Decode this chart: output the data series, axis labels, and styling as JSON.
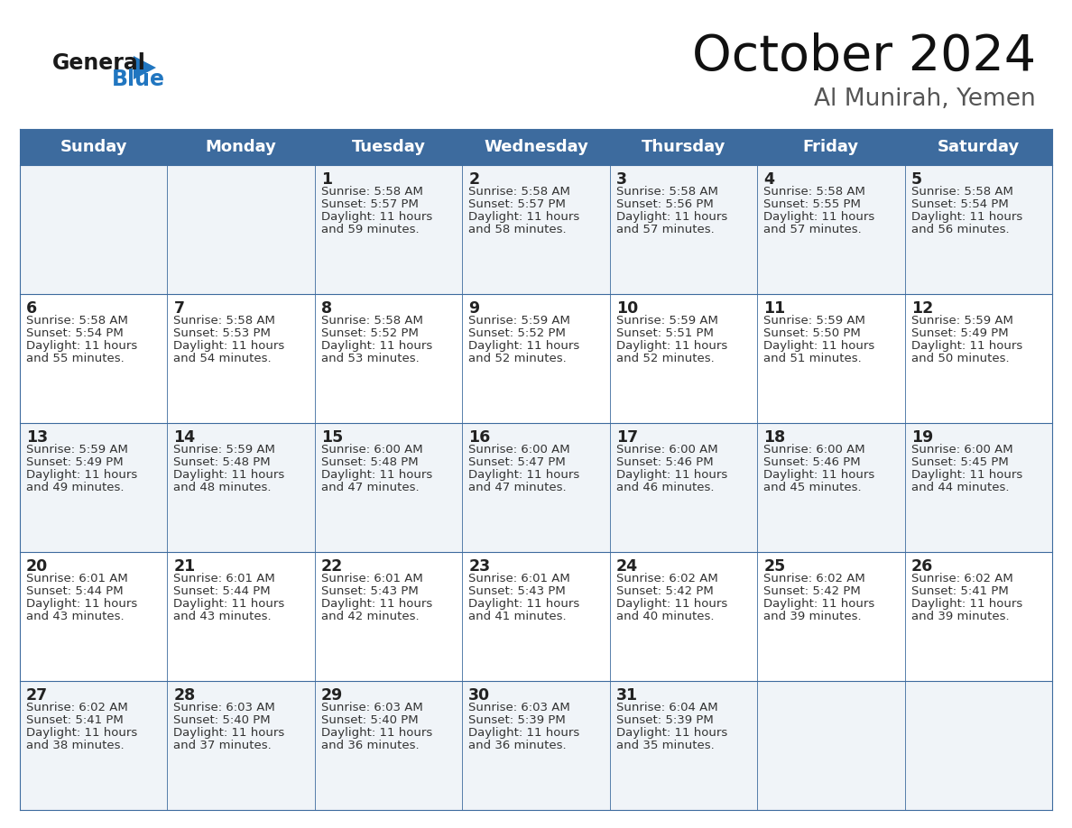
{
  "title": "October 2024",
  "subtitle": "Al Munirah, Yemen",
  "days_of_week": [
    "Sunday",
    "Monday",
    "Tuesday",
    "Wednesday",
    "Thursday",
    "Friday",
    "Saturday"
  ],
  "header_bg": "#3d6b9e",
  "header_text": "#ffffff",
  "cell_bg_odd": "#f0f4f8",
  "cell_bg_even": "#ffffff",
  "day_num_color": "#222222",
  "text_color": "#333333",
  "grid_color": "#3d6b9e",
  "logo_general_color": "#1a1a1a",
  "logo_blue_color": "#2176c0",
  "calendar_data": [
    [
      {
        "day": null,
        "sunrise": null,
        "sunset": null,
        "daylight": null
      },
      {
        "day": null,
        "sunrise": null,
        "sunset": null,
        "daylight": null
      },
      {
        "day": 1,
        "sunrise": "5:58 AM",
        "sunset": "5:57 PM",
        "daylight": "11 hours\nand 59 minutes."
      },
      {
        "day": 2,
        "sunrise": "5:58 AM",
        "sunset": "5:57 PM",
        "daylight": "11 hours\nand 58 minutes."
      },
      {
        "day": 3,
        "sunrise": "5:58 AM",
        "sunset": "5:56 PM",
        "daylight": "11 hours\nand 57 minutes."
      },
      {
        "day": 4,
        "sunrise": "5:58 AM",
        "sunset": "5:55 PM",
        "daylight": "11 hours\nand 57 minutes."
      },
      {
        "day": 5,
        "sunrise": "5:58 AM",
        "sunset": "5:54 PM",
        "daylight": "11 hours\nand 56 minutes."
      }
    ],
    [
      {
        "day": 6,
        "sunrise": "5:58 AM",
        "sunset": "5:54 PM",
        "daylight": "11 hours\nand 55 minutes."
      },
      {
        "day": 7,
        "sunrise": "5:58 AM",
        "sunset": "5:53 PM",
        "daylight": "11 hours\nand 54 minutes."
      },
      {
        "day": 8,
        "sunrise": "5:58 AM",
        "sunset": "5:52 PM",
        "daylight": "11 hours\nand 53 minutes."
      },
      {
        "day": 9,
        "sunrise": "5:59 AM",
        "sunset": "5:52 PM",
        "daylight": "11 hours\nand 52 minutes."
      },
      {
        "day": 10,
        "sunrise": "5:59 AM",
        "sunset": "5:51 PM",
        "daylight": "11 hours\nand 52 minutes."
      },
      {
        "day": 11,
        "sunrise": "5:59 AM",
        "sunset": "5:50 PM",
        "daylight": "11 hours\nand 51 minutes."
      },
      {
        "day": 12,
        "sunrise": "5:59 AM",
        "sunset": "5:49 PM",
        "daylight": "11 hours\nand 50 minutes."
      }
    ],
    [
      {
        "day": 13,
        "sunrise": "5:59 AM",
        "sunset": "5:49 PM",
        "daylight": "11 hours\nand 49 minutes."
      },
      {
        "day": 14,
        "sunrise": "5:59 AM",
        "sunset": "5:48 PM",
        "daylight": "11 hours\nand 48 minutes."
      },
      {
        "day": 15,
        "sunrise": "6:00 AM",
        "sunset": "5:48 PM",
        "daylight": "11 hours\nand 47 minutes."
      },
      {
        "day": 16,
        "sunrise": "6:00 AM",
        "sunset": "5:47 PM",
        "daylight": "11 hours\nand 47 minutes."
      },
      {
        "day": 17,
        "sunrise": "6:00 AM",
        "sunset": "5:46 PM",
        "daylight": "11 hours\nand 46 minutes."
      },
      {
        "day": 18,
        "sunrise": "6:00 AM",
        "sunset": "5:46 PM",
        "daylight": "11 hours\nand 45 minutes."
      },
      {
        "day": 19,
        "sunrise": "6:00 AM",
        "sunset": "5:45 PM",
        "daylight": "11 hours\nand 44 minutes."
      }
    ],
    [
      {
        "day": 20,
        "sunrise": "6:01 AM",
        "sunset": "5:44 PM",
        "daylight": "11 hours\nand 43 minutes."
      },
      {
        "day": 21,
        "sunrise": "6:01 AM",
        "sunset": "5:44 PM",
        "daylight": "11 hours\nand 43 minutes."
      },
      {
        "day": 22,
        "sunrise": "6:01 AM",
        "sunset": "5:43 PM",
        "daylight": "11 hours\nand 42 minutes."
      },
      {
        "day": 23,
        "sunrise": "6:01 AM",
        "sunset": "5:43 PM",
        "daylight": "11 hours\nand 41 minutes."
      },
      {
        "day": 24,
        "sunrise": "6:02 AM",
        "sunset": "5:42 PM",
        "daylight": "11 hours\nand 40 minutes."
      },
      {
        "day": 25,
        "sunrise": "6:02 AM",
        "sunset": "5:42 PM",
        "daylight": "11 hours\nand 39 minutes."
      },
      {
        "day": 26,
        "sunrise": "6:02 AM",
        "sunset": "5:41 PM",
        "daylight": "11 hours\nand 39 minutes."
      }
    ],
    [
      {
        "day": 27,
        "sunrise": "6:02 AM",
        "sunset": "5:41 PM",
        "daylight": "11 hours\nand 38 minutes."
      },
      {
        "day": 28,
        "sunrise": "6:03 AM",
        "sunset": "5:40 PM",
        "daylight": "11 hours\nand 37 minutes."
      },
      {
        "day": 29,
        "sunrise": "6:03 AM",
        "sunset": "5:40 PM",
        "daylight": "11 hours\nand 36 minutes."
      },
      {
        "day": 30,
        "sunrise": "6:03 AM",
        "sunset": "5:39 PM",
        "daylight": "11 hours\nand 36 minutes."
      },
      {
        "day": 31,
        "sunrise": "6:04 AM",
        "sunset": "5:39 PM",
        "daylight": "11 hours\nand 35 minutes."
      },
      {
        "day": null,
        "sunrise": null,
        "sunset": null,
        "daylight": null
      },
      {
        "day": null,
        "sunrise": null,
        "sunset": null,
        "daylight": null
      }
    ]
  ]
}
